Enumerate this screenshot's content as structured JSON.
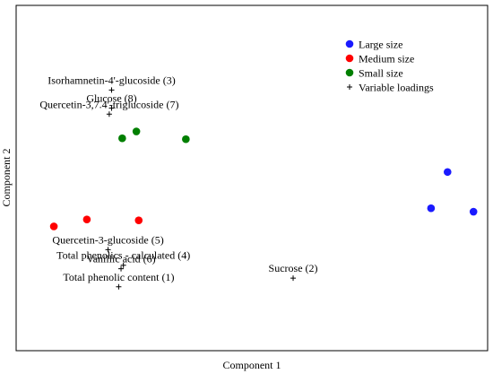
{
  "chart_data": {
    "type": "scatter",
    "xlabel": "Component 1",
    "ylabel": "Component 2",
    "title": "",
    "xlim": [
      -1.0,
      1.0
    ],
    "ylim": [
      -1.0,
      1.0
    ],
    "grid": false,
    "legend_position": "top-right",
    "legend": [
      {
        "key": "large",
        "label": "Large size",
        "color": "#1a1aff",
        "marker": "circle"
      },
      {
        "key": "medium",
        "label": "Medium size",
        "color": "#ff0000",
        "marker": "circle"
      },
      {
        "key": "small",
        "label": "Small size",
        "color": "#007f00",
        "marker": "circle"
      },
      {
        "key": "loadings",
        "label": "Variable loadings",
        "color": "#000000",
        "marker": "plus"
      }
    ],
    "series": [
      {
        "name": "Large size",
        "color": "#1a1aff",
        "marker": "circle",
        "points": [
          {
            "x": 0.83,
            "y": 0.035
          },
          {
            "x": 0.76,
            "y": -0.175
          },
          {
            "x": 0.94,
            "y": -0.195
          }
        ]
      },
      {
        "name": "Medium size",
        "color": "#ff0000",
        "marker": "circle",
        "points": [
          {
            "x": -0.84,
            "y": -0.28
          },
          {
            "x": -0.7,
            "y": -0.24
          },
          {
            "x": -0.48,
            "y": -0.245
          }
        ]
      },
      {
        "name": "Small size",
        "color": "#007f00",
        "marker": "circle",
        "points": [
          {
            "x": -0.55,
            "y": 0.23
          },
          {
            "x": -0.49,
            "y": 0.27
          },
          {
            "x": -0.28,
            "y": 0.225
          }
        ]
      },
      {
        "name": "Variable loadings",
        "color": "#000000",
        "marker": "plus",
        "points": [
          {
            "x": -0.595,
            "y": 0.51,
            "label": "Isorhamnetin-4'-glucoside (3)"
          },
          {
            "x": -0.595,
            "y": 0.405,
            "label": "Glucose (8)"
          },
          {
            "x": -0.605,
            "y": 0.37,
            "label": "Quercetin-3,7.4'-triglucoside (7)"
          },
          {
            "x": -0.61,
            "y": -0.415,
            "label": "Quercetin-3-glucoside (5)"
          },
          {
            "x": -0.545,
            "y": -0.505,
            "label": "Total phenolics - calculated (4)"
          },
          {
            "x": -0.555,
            "y": -0.525,
            "label": "Vanillic acid (6)"
          },
          {
            "x": -0.565,
            "y": -0.63,
            "label": "Total phenolic content (1)"
          },
          {
            "x": 0.175,
            "y": -0.58,
            "label": "Sucrose (2)"
          }
        ]
      }
    ]
  }
}
